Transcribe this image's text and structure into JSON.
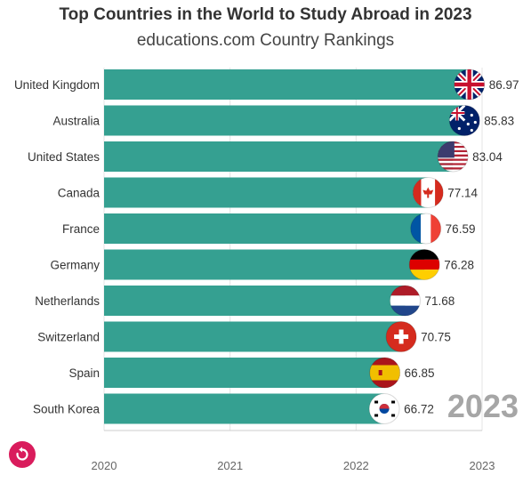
{
  "header": {
    "title": "Top Countries in the World to Study Abroad in 2023",
    "subtitle": "educations.com Country Rankings"
  },
  "year_badge": "2023",
  "colors": {
    "bar": "#35a091",
    "grid": "#e4e4e4",
    "label": "#333333",
    "badge": "#a6a6a6",
    "replay": "#d91c5c"
  },
  "replay_icon": "replay-icon",
  "chart_data": {
    "type": "bar",
    "orientation": "horizontal",
    "title": "Top Countries in the World to Study Abroad in 2023",
    "subtitle": "educations.com Country Rankings",
    "categories": [
      "United Kingdom",
      "Australia",
      "United States",
      "Canada",
      "France",
      "Germany",
      "Netherlands",
      "Switzerland",
      "Spain",
      "South Korea"
    ],
    "values": [
      86.97,
      85.83,
      83.04,
      77.14,
      76.59,
      76.28,
      71.68,
      70.75,
      66.85,
      66.72
    ],
    "x_tick_labels": [
      "2020",
      "2021",
      "2022",
      "2023"
    ],
    "x_value_range": [
      0,
      90
    ],
    "grid": true,
    "flags": [
      "uk-flag",
      "australia-flag",
      "usa-flag",
      "canada-flag",
      "france-flag",
      "germany-flag",
      "netherlands-flag",
      "switzerland-flag",
      "spain-flag",
      "south-korea-flag"
    ]
  }
}
